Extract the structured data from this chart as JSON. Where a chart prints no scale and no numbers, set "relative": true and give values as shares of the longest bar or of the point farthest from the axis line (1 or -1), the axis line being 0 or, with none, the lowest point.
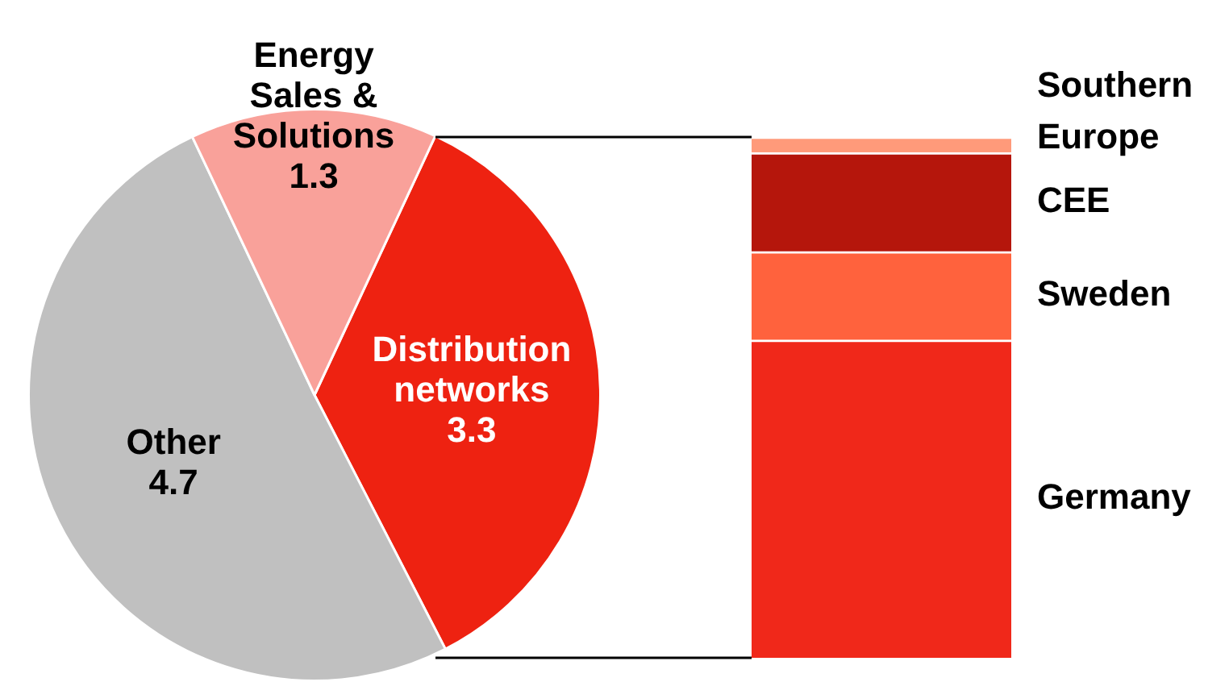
{
  "chart_data": [
    {
      "type": "pie",
      "categories": [
        "Distribution networks",
        "Other",
        "Energy Sales & Solutions"
      ],
      "values": [
        3.3,
        4.7,
        1.3
      ],
      "colors": [
        "#ee2211",
        "#c0c0c0",
        "#f9a19a"
      ],
      "data_labels": true
    },
    {
      "type": "bar",
      "stacked": true,
      "relative": true,
      "categories": [
        null
      ],
      "series": [
        {
          "name": "Germany",
          "color": "#f0281a",
          "values": [
            0.61
          ]
        },
        {
          "name": "Sweden",
          "color": "#ff623d",
          "values": [
            0.17
          ]
        },
        {
          "name": "CEE",
          "color": "#b5160c",
          "values": [
            0.19
          ]
        },
        {
          "name": "Southern Europe",
          "color": "#ff9a7a",
          "values": [
            0.03
          ]
        }
      ]
    }
  ]
}
